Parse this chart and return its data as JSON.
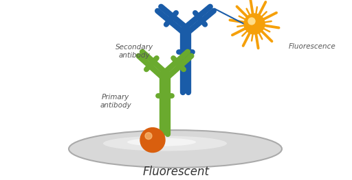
{
  "background_color": "#ffffff",
  "title": "Fluorescent",
  "title_fontsize": 12,
  "title_color": "#333333",
  "primary_color": "#6aaa2e",
  "secondary_color": "#1a5ca8",
  "antigen_color": "#d95f0e",
  "fluor_color": "#f5a00a",
  "fluor_center_color": "#f5a00a",
  "label_secondary": "Secondary\nantibody",
  "label_fluorescence": "Fluorescence",
  "label_primary": "Primary\nantibody",
  "label_color": "#555555",
  "label_fontsize": 7.5,
  "platform_face": "#d8d8d8",
  "platform_edge": "#aaaaaa",
  "platform_highlight": "#eeeeee"
}
